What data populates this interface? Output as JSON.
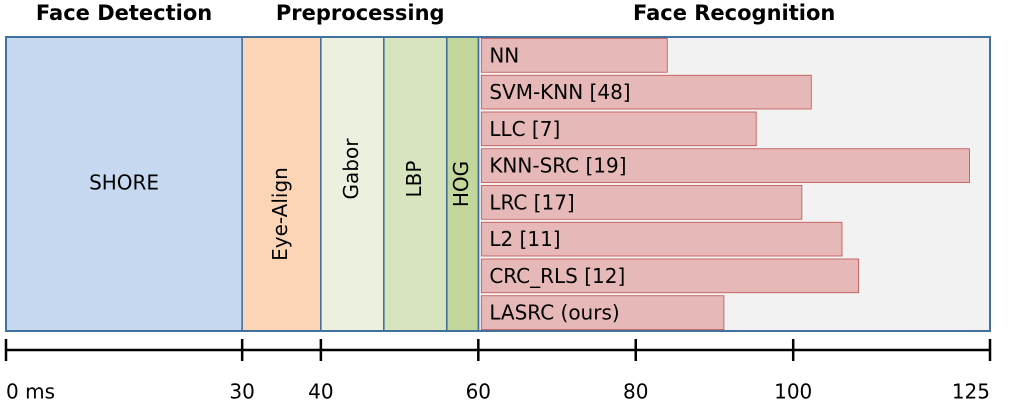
{
  "chart_data": {
    "type": "timeline",
    "phases": [
      {
        "name": "Face Detection",
        "start": 0,
        "end": 30
      },
      {
        "name": "Preprocessing",
        "start": 30,
        "end": 60
      },
      {
        "name": "Face Recognition",
        "start": 60,
        "end": 125,
        "color": "#f2f2f2"
      }
    ],
    "stages": [
      {
        "name": "SHORE",
        "start": 0,
        "end": 30,
        "color": "#c6d9f0"
      },
      {
        "name": "Eye-Align",
        "start": 30,
        "end": 40,
        "color": "#fbd5b5"
      },
      {
        "name": "Gabor",
        "start": 40,
        "end": 48,
        "color": "#ebf1de"
      },
      {
        "name": "LBP",
        "start": 48,
        "end": 56,
        "color": "#d7e4bd"
      },
      {
        "name": "HOG",
        "start": 56,
        "end": 60,
        "color": "#c3d69b"
      }
    ],
    "methods": {
      "color": "#e6b9b8",
      "categories": [
        "NN",
        "SVM-KNN [48]",
        "LLC [7]",
        "KNN-SRC [19]",
        "LRC [17]",
        "L2 [11]",
        "CRC_RLS [12]",
        "LASRC (ours)"
      ],
      "values": [
        84,
        102.3,
        95.3,
        122.4,
        101.1,
        106.2,
        108.3,
        91.2
      ]
    },
    "xlim": [
      0,
      125
    ],
    "xticks": [
      {
        "value": 0,
        "label": "0 ms"
      },
      30,
      40,
      60,
      80,
      100,
      125
    ]
  }
}
